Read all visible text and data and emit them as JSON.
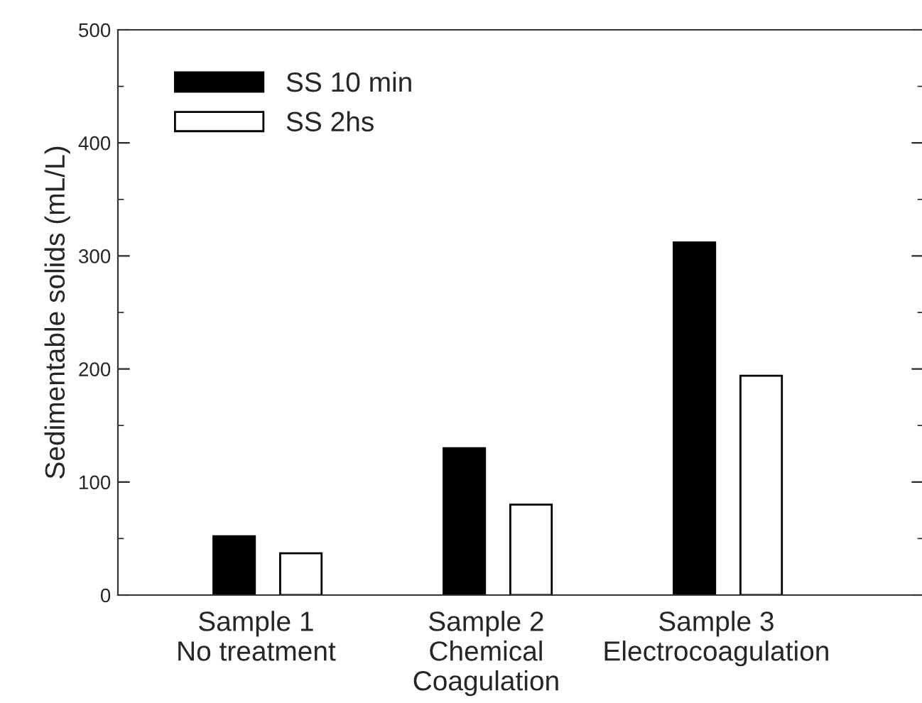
{
  "chart_data": {
    "type": "bar",
    "ylabel": "Sedimentable solids (mL/L)",
    "categories": [
      "Sample 1\nNo treatment",
      "Sample 2\nChemical\nCoagulation",
      "Sample 3\nElectrocoagulation"
    ],
    "series": [
      {
        "name": "SS 10 min",
        "color": "#000000",
        "values": [
          52,
          130,
          312
        ]
      },
      {
        "name": "SS 2hs",
        "color": "#ffffff",
        "values": [
          37,
          80,
          194
        ]
      }
    ],
    "ylim": [
      0,
      500
    ],
    "yticks": [
      0,
      100,
      200,
      300,
      400,
      500
    ],
    "grid": false,
    "legend": "top left"
  }
}
